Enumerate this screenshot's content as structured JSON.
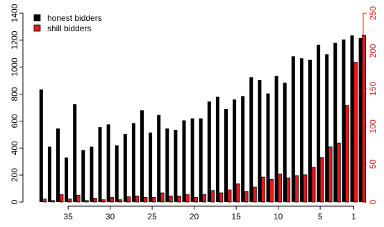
{
  "chart_data": {
    "type": "bar",
    "title": "",
    "xlabel": "",
    "ylabel": "",
    "y2label": "",
    "x": [
      38,
      37,
      36,
      35,
      34,
      33,
      32,
      31,
      30,
      29,
      28,
      27,
      26,
      25,
      24,
      23,
      22,
      21,
      20,
      19,
      18,
      17,
      16,
      15,
      14,
      13,
      12,
      11,
      10,
      9,
      8,
      7,
      6,
      5,
      4,
      3,
      2,
      1
    ],
    "x_tick_labels": [
      "35",
      "30",
      "25",
      "20",
      "15",
      "10",
      "5",
      "1"
    ],
    "x_tick_values": [
      35,
      30,
      25,
      20,
      15,
      10,
      5,
      1
    ],
    "ylim": [
      0,
      1400
    ],
    "y_ticks": [
      0,
      200,
      400,
      600,
      800,
      1000,
      1200,
      1400
    ],
    "y2lim": [
      0,
      250
    ],
    "y2_ticks": [
      0,
      50,
      100,
      150,
      200,
      250
    ],
    "grid": false,
    "legend_position": "top-left",
    "colors": {
      "honest": "#000000",
      "shill": "#e31a1c",
      "axis2": "#e31a1c",
      "bar_edge": "#000000"
    },
    "series": [
      {
        "name": "honest bidders",
        "axis": "left",
        "values": [
          835,
          410,
          545,
          330,
          725,
          385,
          410,
          555,
          575,
          420,
          505,
          585,
          680,
          515,
          645,
          545,
          535,
          605,
          620,
          620,
          745,
          780,
          690,
          760,
          785,
          925,
          905,
          805,
          935,
          885,
          1080,
          1065,
          1055,
          1165,
          1095,
          1180,
          1205,
          1235
        ]
      },
      {
        "name": "shill bidders",
        "axis": "right",
        "values": [
          4,
          2,
          10,
          4,
          9,
          2,
          5,
          3,
          6,
          3,
          7,
          8,
          6,
          6,
          12,
          8,
          8,
          10,
          6,
          10,
          15,
          12,
          16,
          24,
          14,
          20,
          33,
          30,
          37,
          32,
          35,
          36,
          46,
          59,
          73,
          78,
          128,
          185
        ]
      }
    ],
    "extra_pair": {
      "x": 0,
      "honest": 1215,
      "shill": 221
    },
    "legend": [
      {
        "label": "honest bidders",
        "color": "#000000"
      },
      {
        "label": "shill bidders",
        "color": "#e31a1c"
      }
    ]
  }
}
